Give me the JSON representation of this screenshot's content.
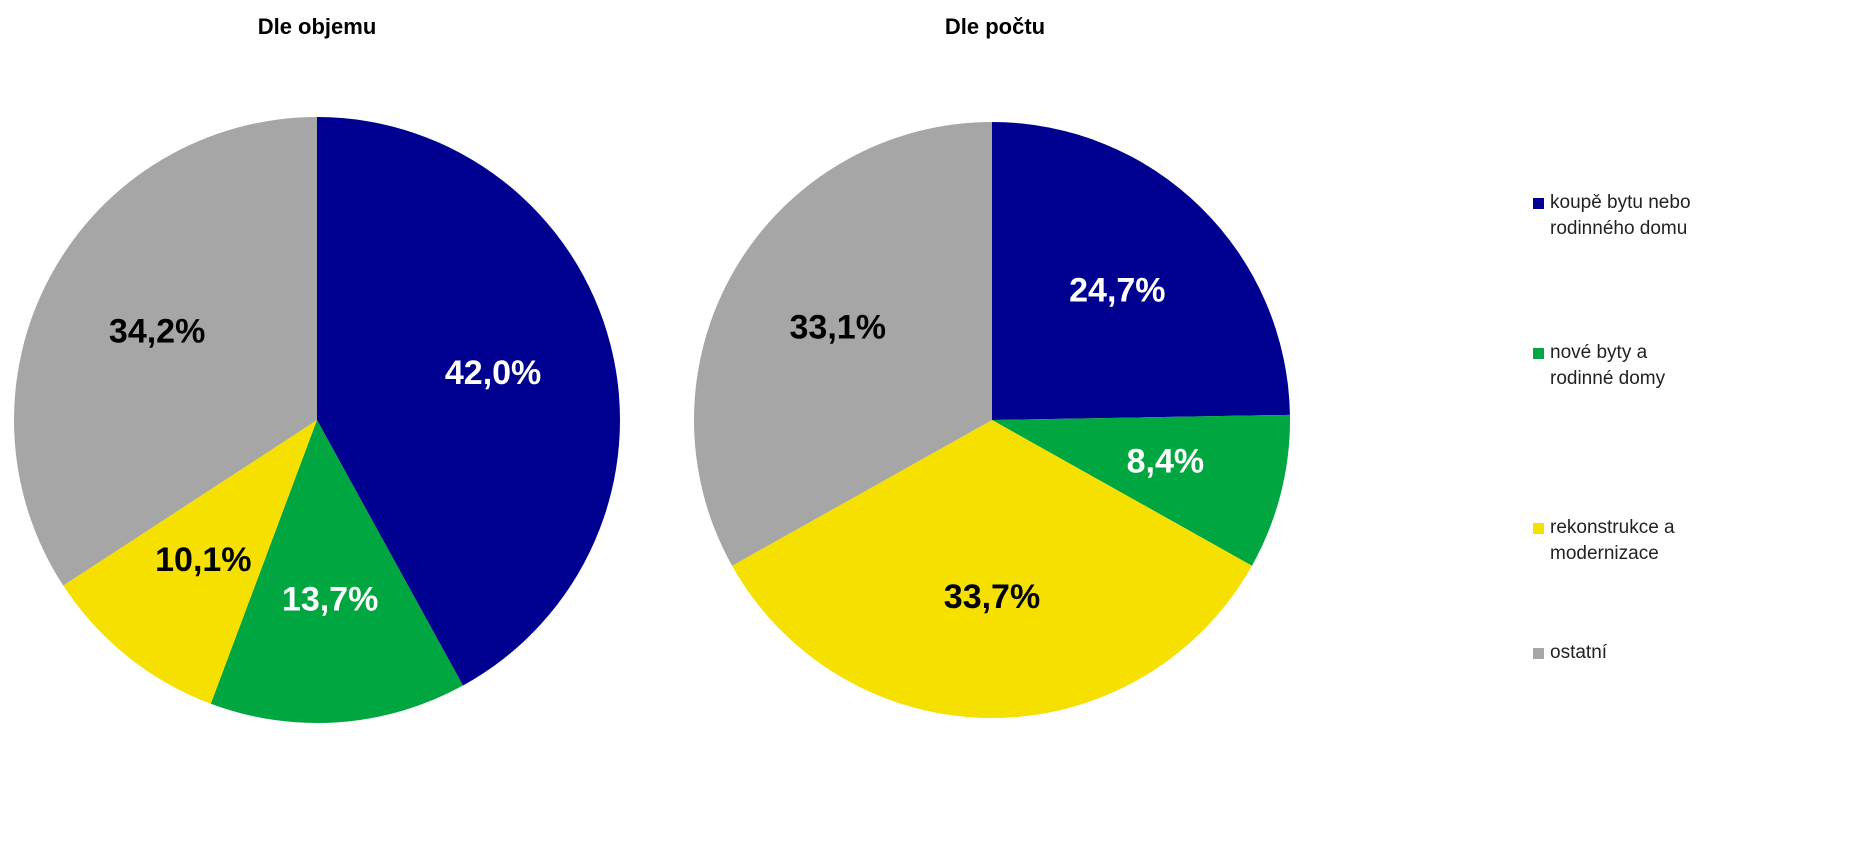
{
  "chart_data": [
    {
      "type": "pie",
      "title": "Dle objemu",
      "values": [
        42.0,
        13.7,
        10.1,
        34.2
      ],
      "value_labels": [
        "42,0%",
        "13,7%",
        "10,1%",
        "34,2%"
      ]
    },
    {
      "type": "pie",
      "title": "Dle počtu",
      "values": [
        24.7,
        8.4,
        33.7,
        33.1
      ],
      "value_labels": [
        "24,7%",
        "8,4%",
        "33,7%",
        "33,1%"
      ]
    }
  ],
  "legend": {
    "labels": [
      "koupě bytu nebo\nrodinného domu",
      "nové byty a\nrodinné domy",
      "rekonstrukce a\nmodernizace",
      "ostatní"
    ],
    "colors": [
      "#000090",
      "#00a640",
      "#f5e000",
      "#a6a6a6"
    ],
    "text_colors": [
      "#ffffff",
      "#ffffff",
      "#000000",
      "#000000"
    ],
    "position": "right"
  }
}
